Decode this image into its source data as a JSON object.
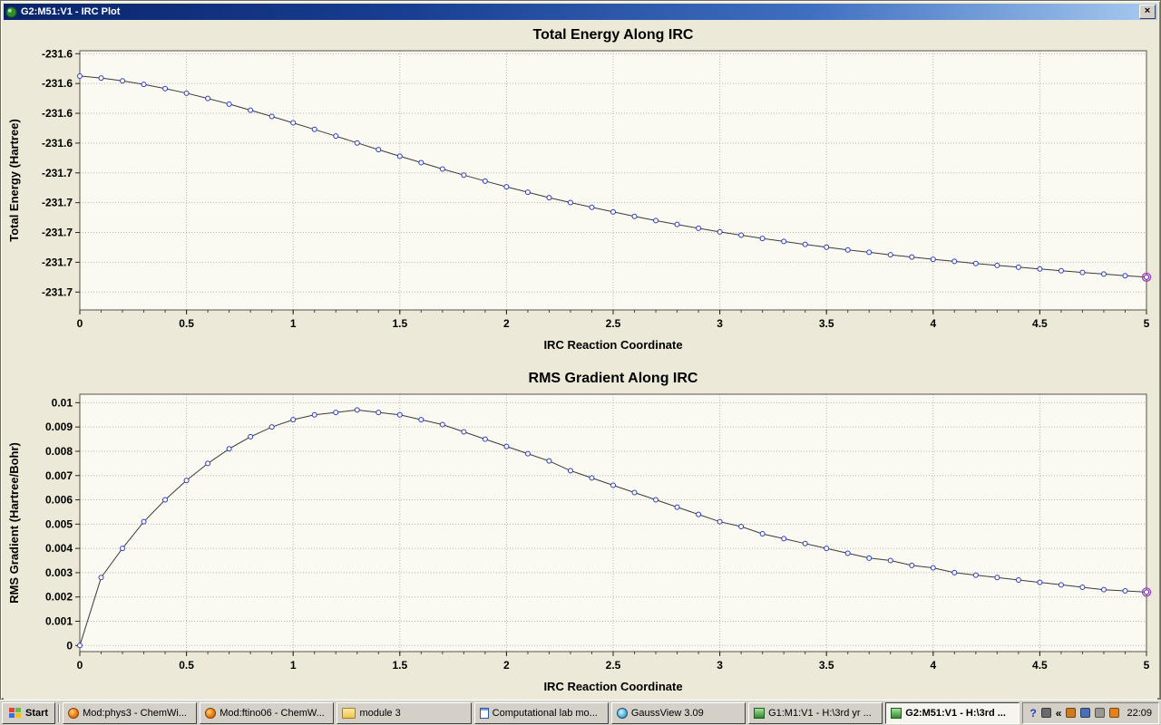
{
  "window": {
    "title": "G2:M51:V1 - IRC Plot",
    "close_label": "×"
  },
  "chart_data": [
    {
      "type": "line",
      "title": "Total Energy Along IRC",
      "xlabel": "IRC Reaction Coordinate",
      "ylabel": "Total Energy (Hartree)",
      "xlim": [
        0,
        5
      ],
      "ylim": [
        -231.752,
        -231.578
      ],
      "minor_step": 0.1,
      "xticks": [
        0,
        0.5,
        1,
        1.5,
        2,
        2.5,
        3,
        3.5,
        4,
        4.5,
        5
      ],
      "xtick_labels": [
        "0",
        "0.5",
        "1",
        "1.5",
        "2",
        "2.5",
        "3",
        "3.5",
        "4",
        "4.5",
        "5"
      ],
      "ytick_values": [
        -231.74,
        -231.72,
        -231.7,
        -231.68,
        -231.66,
        -231.64,
        -231.62,
        -231.6,
        -231.58
      ],
      "ytick_labels": [
        "-231.7",
        "-231.7",
        "-231.7",
        "-231.7",
        "-231.7",
        "-231.6",
        "-231.6",
        "-231.6",
        "-231.6"
      ],
      "x": [
        0,
        0.1,
        0.2,
        0.3,
        0.4,
        0.5,
        0.6,
        0.7,
        0.8,
        0.9,
        1.0,
        1.1,
        1.2,
        1.3,
        1.4,
        1.5,
        1.6,
        1.7,
        1.8,
        1.9,
        2.0,
        2.1,
        2.2,
        2.3,
        2.4,
        2.5,
        2.6,
        2.7,
        2.8,
        2.9,
        3.0,
        3.1,
        3.2,
        3.3,
        3.4,
        3.5,
        3.6,
        3.7,
        3.8,
        3.9,
        4.0,
        4.1,
        4.2,
        4.3,
        4.4,
        4.5,
        4.6,
        4.7,
        4.8,
        4.9,
        5.0
      ],
      "y": [
        -231.595,
        -231.5963,
        -231.5982,
        -231.6006,
        -231.6034,
        -231.6065,
        -231.61,
        -231.6138,
        -231.6179,
        -231.6221,
        -231.6264,
        -231.6308,
        -231.6353,
        -231.6399,
        -231.6444,
        -231.6488,
        -231.6531,
        -231.6574,
        -231.6615,
        -231.6655,
        -231.6693,
        -231.673,
        -231.6766,
        -231.6799,
        -231.6831,
        -231.6862,
        -231.6892,
        -231.692,
        -231.6946,
        -231.6972,
        -231.6996,
        -231.7018,
        -231.704,
        -231.706,
        -231.708,
        -231.7099,
        -231.7117,
        -231.7133,
        -231.715,
        -231.7165,
        -231.718,
        -231.7194,
        -231.7208,
        -231.7221,
        -231.7233,
        -231.7245,
        -231.7257,
        -231.7268,
        -231.7279,
        -231.729,
        -231.73
      ],
      "grid": true,
      "plot_bg": "#fbfaf2",
      "grid_color": "#b9b5a6",
      "frame_color": "#55534a",
      "line_color": "#3a3a3a",
      "marker_color": "#2a3cc0",
      "endpoint_color": "#c02ac0"
    },
    {
      "type": "line",
      "title": "RMS Gradient Along IRC",
      "xlabel": "IRC Reaction Coordinate",
      "ylabel": "RMS Gradient (Hartree/Bohr)",
      "xlim": [
        0,
        5
      ],
      "ylim": [
        -0.00025,
        0.01035
      ],
      "minor_step": 0.1,
      "xticks": [
        0,
        0.5,
        1,
        1.5,
        2,
        2.5,
        3,
        3.5,
        4,
        4.5,
        5
      ],
      "xtick_labels": [
        "0",
        "0.5",
        "1",
        "1.5",
        "2",
        "2.5",
        "3",
        "3.5",
        "4",
        "4.5",
        "5"
      ],
      "ytick_values": [
        0,
        0.001,
        0.002,
        0.003,
        0.004,
        0.005,
        0.006,
        0.007,
        0.008,
        0.009,
        0.01
      ],
      "ytick_labels": [
        "0",
        "0.001",
        "0.002",
        "0.003",
        "0.004",
        "0.005",
        "0.006",
        "0.007",
        "0.008",
        "0.009",
        "0.01"
      ],
      "x": [
        0,
        0.1,
        0.2,
        0.3,
        0.4,
        0.5,
        0.6,
        0.7,
        0.8,
        0.9,
        1.0,
        1.1,
        1.2,
        1.3,
        1.4,
        1.5,
        1.6,
        1.7,
        1.8,
        1.9,
        2.0,
        2.1,
        2.2,
        2.3,
        2.4,
        2.5,
        2.6,
        2.7,
        2.8,
        2.9,
        3.0,
        3.1,
        3.2,
        3.3,
        3.4,
        3.5,
        3.6,
        3.7,
        3.8,
        3.9,
        4.0,
        4.1,
        4.2,
        4.3,
        4.4,
        4.5,
        4.6,
        4.7,
        4.8,
        4.9,
        5.0
      ],
      "y": [
        0,
        0.0028,
        0.004,
        0.0051,
        0.006,
        0.0068,
        0.0075,
        0.0081,
        0.0086,
        0.009,
        0.0093,
        0.0095,
        0.0096,
        0.0097,
        0.0096,
        0.0095,
        0.0093,
        0.0091,
        0.0088,
        0.0085,
        0.0082,
        0.0079,
        0.0076,
        0.0072,
        0.0069,
        0.0066,
        0.0063,
        0.006,
        0.0057,
        0.0054,
        0.0051,
        0.0049,
        0.0046,
        0.0044,
        0.0042,
        0.004,
        0.0038,
        0.0036,
        0.0035,
        0.0033,
        0.0032,
        0.003,
        0.0029,
        0.0028,
        0.0027,
        0.0026,
        0.0025,
        0.0024,
        0.0023,
        0.00225,
        0.0022
      ],
      "grid": true,
      "plot_bg": "#fbfaf2",
      "grid_color": "#b9b5a6",
      "frame_color": "#55534a",
      "line_color": "#3a3a3a",
      "marker_color": "#2a3cc0",
      "endpoint_color": "#c02ac0"
    }
  ],
  "taskbar": {
    "start_label": "Start",
    "buttons": [
      {
        "label": "Mod:phys3 - ChemWi...",
        "icon": "firefox-icon",
        "active": false
      },
      {
        "label": "Mod:ftino06 - ChemW...",
        "icon": "firefox-icon",
        "active": false
      },
      {
        "label": "module 3",
        "icon": "folder-icon",
        "active": false
      },
      {
        "label": "Computational lab mo...",
        "icon": "document-icon",
        "active": false
      },
      {
        "label": "GaussView 3.09",
        "icon": "gaussview-icon",
        "active": false
      },
      {
        "label": "G1:M1:V1 - H:\\3rd yr ...",
        "icon": "gaussview-window-icon",
        "active": false
      },
      {
        "label": "G2:M51:V1 - H:\\3rd ...",
        "icon": "gaussview-window-icon",
        "active": true
      }
    ],
    "tray": {
      "icons": [
        {
          "name": "help-icon",
          "type": "text",
          "glyph": "?",
          "color": "#2040c0"
        },
        {
          "name": "display-icon",
          "type": "swatch",
          "color": "#6a6a6a"
        },
        {
          "name": "hide-icons-chevron",
          "type": "text",
          "glyph": "«",
          "color": "#000000"
        },
        {
          "name": "pen-icon",
          "type": "swatch",
          "color": "#cf7a1e"
        },
        {
          "name": "network-icon",
          "type": "swatch",
          "color": "#4a6fb5"
        },
        {
          "name": "volume-icon",
          "type": "swatch",
          "color": "#9a9890"
        },
        {
          "name": "update-icon",
          "type": "swatch",
          "color": "#e0821e"
        }
      ],
      "clock": "22:09"
    }
  }
}
